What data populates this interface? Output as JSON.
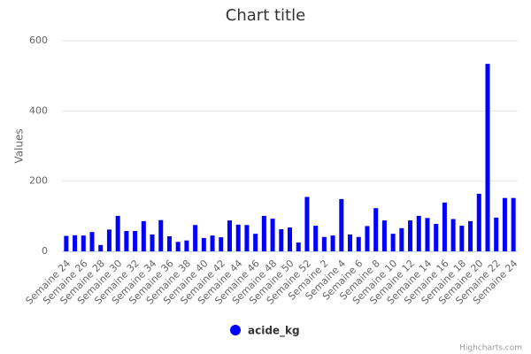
{
  "chart_data": {
    "type": "bar",
    "title": "Chart title",
    "y_label": "Values",
    "categories": [
      "Semaine 24",
      null,
      "Semaine 26",
      null,
      "Semaine 28",
      null,
      "Semaine 30",
      null,
      "Semaine 32",
      null,
      "Semaine 34",
      null,
      "Semaine 36",
      null,
      "Semaine 38",
      null,
      "Semaine 40",
      null,
      "Semaine 42",
      null,
      "Semaine 44",
      null,
      "Semaine 46",
      null,
      "Semaine 48",
      null,
      "Semaine 50",
      null,
      "Semaine 52",
      null,
      "Semaine 2",
      null,
      "Semaine 4",
      null,
      "Semaine 6",
      null,
      "Semaine 8",
      null,
      "Semaine 10",
      null,
      "Semaine 12",
      null,
      "Semaine 14",
      null,
      "Semaine 16",
      null,
      "Semaine 18",
      null,
      "Semaine 20",
      null,
      "Semaine 22",
      null,
      "Semaine 24"
    ],
    "series": [
      {
        "name": "acide_kg",
        "color": "#0000ff",
        "values": [
          44,
          46,
          45,
          55,
          18,
          62,
          101,
          58,
          58,
          86,
          48,
          89,
          43,
          27,
          31,
          75,
          38,
          45,
          40,
          88,
          76,
          75,
          50,
          101,
          93,
          63,
          68,
          25,
          155,
          73,
          41,
          45,
          149,
          48,
          41,
          72,
          123,
          88,
          50,
          66,
          88,
          101,
          95,
          78,
          139,
          92,
          73,
          86,
          164,
          534,
          96,
          152,
          152
        ]
      }
    ],
    "ylim": [
      0,
      600
    ],
    "yticks": [
      0,
      200,
      400,
      600
    ],
    "grid": true,
    "legend": "bottom",
    "credits": "Highcharts.com"
  }
}
